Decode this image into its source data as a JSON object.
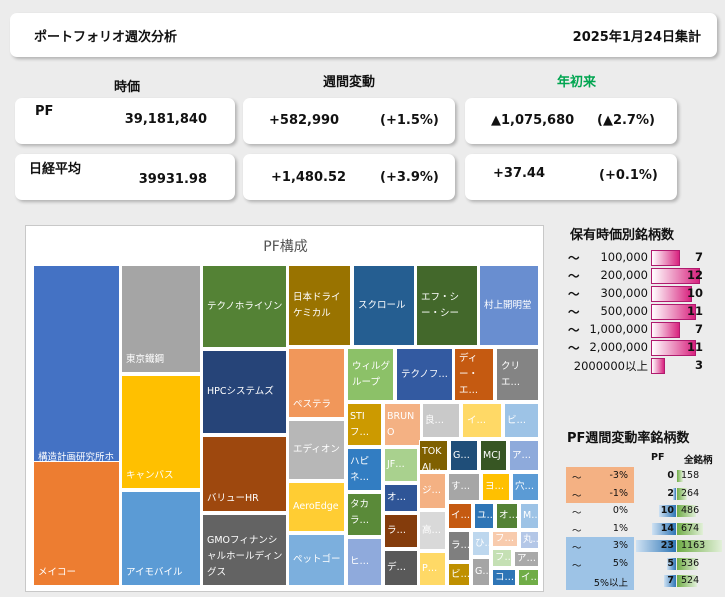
{
  "header": {
    "title": "ポートフォリオ週次分析",
    "date": "2025年1月24日集計"
  },
  "columns": {
    "price": "時価",
    "weekly": "週間変動",
    "ytd": "年初来"
  },
  "rows": [
    {
      "label": "PF",
      "price": "39,181,840",
      "weekly_val": "+582,990",
      "weekly_pct": "(+1.5%)",
      "ytd_val": "▲1,075,680",
      "ytd_pct": "(▲2.7%)"
    },
    {
      "label": "日経平均",
      "price": "39931.98",
      "weekly_val": "+1,480.52",
      "weekly_pct": "(+3.9%)",
      "ytd_val": "+37.44",
      "ytd_pct": "(+0.1%)"
    }
  ],
  "treemap": {
    "title": "PF構成",
    "cells": [
      {
        "label": "構造計画研究所ホールディングス",
        "color": "#4472c4"
      },
      {
        "label": "メイコー",
        "color": "#ed7d31"
      },
      {
        "label": "東京鐵鋼",
        "color": "#a5a5a5"
      },
      {
        "label": "キャンバス",
        "color": "#ffc000"
      },
      {
        "label": "アイモバイル",
        "color": "#5b9bd5"
      },
      {
        "label": "テクノホライゾン",
        "color": "#548235"
      },
      {
        "label": "HPCシステムズ",
        "color": "#264478"
      },
      {
        "label": "バリューHR",
        "color": "#9e480e"
      },
      {
        "label": "GMOフィナンシャルホールディングス",
        "color": "#636363"
      },
      {
        "label": "日本ドライケミカル",
        "color": "#997300"
      },
      {
        "label": "スクロール",
        "color": "#255e91"
      },
      {
        "label": "エフ・シー・シー",
        "color": "#43682b"
      },
      {
        "label": "村上開明堂",
        "color": "#698ed0"
      },
      {
        "label": "ペステラ",
        "color": "#f1975a"
      },
      {
        "label": "エディオン",
        "color": "#b7b7b7"
      },
      {
        "label": "AeroEdge",
        "color": "#ffcd33"
      },
      {
        "label": "ペットゴー",
        "color": "#7cafdd"
      },
      {
        "label": "ウィルグループ",
        "color": "#8cc168"
      },
      {
        "label": "テクノフ…",
        "color": "#335aa1"
      },
      {
        "label": "ディー・エ…",
        "color": "#c55a11"
      },
      {
        "label": "クリエ…",
        "color": "#848484"
      },
      {
        "label": "STIフ…",
        "color": "#cc9a00"
      },
      {
        "label": "ハピネ…",
        "color": "#327dc2"
      },
      {
        "label": "タカラ…",
        "color": "#5a8a39"
      },
      {
        "label": "ヒ…",
        "color": "#8faadc"
      },
      {
        "label": "BRUNO",
        "color": "#f4b183"
      },
      {
        "label": "JF…",
        "color": "#a9d18e"
      },
      {
        "label": "オ…",
        "color": "#2f5597"
      },
      {
        "label": "ラ…",
        "color": "#843c0c"
      },
      {
        "label": "デ…",
        "color": "#595959"
      },
      {
        "label": "良…",
        "color": "#c9c9c9"
      },
      {
        "label": "イ…",
        "color": "#ffd966"
      },
      {
        "label": "ビ…",
        "color": "#9dc3e6"
      },
      {
        "label": "TOKAI…",
        "color": "#7f6000"
      },
      {
        "label": "G…",
        "color": "#1f4e79"
      },
      {
        "label": "MCJ",
        "color": "#375623"
      },
      {
        "label": "ア…",
        "color": "#8eaadb"
      },
      {
        "label": "ジ…",
        "color": "#f4b183"
      },
      {
        "label": "す…",
        "color": "#a6a6a6"
      },
      {
        "label": "ヨ…",
        "color": "#ffc000"
      },
      {
        "label": "穴…",
        "color": "#5b9bd5"
      },
      {
        "label": "高…",
        "color": "#d9d9d9"
      },
      {
        "label": "イ…",
        "color": "#c55a11"
      },
      {
        "label": "ユ…",
        "color": "#2e75b6"
      },
      {
        "label": "オ…",
        "color": "#548235"
      },
      {
        "label": "M…",
        "color": "#9dc3e6"
      },
      {
        "label": "P…",
        "color": "#ffd966"
      },
      {
        "label": "ラ…",
        "color": "#7f7f7f"
      },
      {
        "label": "ひ…",
        "color": "#bdd7ee"
      },
      {
        "label": "フ…",
        "color": "#f8cbad"
      },
      {
        "label": "丸…",
        "color": "#b4c7e7"
      },
      {
        "label": "ビ…",
        "color": "#bf9000"
      },
      {
        "label": "G…",
        "color": "#a5a5a5"
      },
      {
        "label": "フ…",
        "color": "#c5e0b4"
      },
      {
        "label": "ア…",
        "color": "#a9a9a9"
      },
      {
        "label": "コ…",
        "color": "#2e75b6"
      },
      {
        "label": "イ…",
        "color": "#70ad47"
      }
    ]
  },
  "holdings_by_value": {
    "title": "保有時価別銘柄数",
    "rows": [
      {
        "prefix": "～",
        "range": "100,000",
        "count": 7,
        "count_text": "7"
      },
      {
        "prefix": "～",
        "range": "200,000",
        "count": 12,
        "count_text": "12"
      },
      {
        "prefix": "～",
        "range": "300,000",
        "count": 10,
        "count_text": "10"
      },
      {
        "prefix": "～",
        "range": "500,000",
        "count": 11,
        "count_text": "11"
      },
      {
        "prefix": "～",
        "range": "1,000,000",
        "count": 7,
        "count_text": "7"
      },
      {
        "prefix": "～",
        "range": "2,000,000",
        "count": 11,
        "count_text": "11"
      },
      {
        "prefix": "",
        "range": "2000000以上",
        "count": 3,
        "count_text": "3"
      }
    ]
  },
  "weekly_change": {
    "title": "PF週間変動率銘柄数",
    "col_pf": "PF",
    "col_all": "全銘柄",
    "rows": [
      {
        "prefix": "～",
        "range": "-3%",
        "pf": 0,
        "pf_text": "0",
        "all": 158,
        "all_text": "158"
      },
      {
        "prefix": "～",
        "range": "-1%",
        "pf": 2,
        "pf_text": "2",
        "all": 264,
        "all_text": "264"
      },
      {
        "prefix": "～",
        "range": "0%",
        "pf": 10,
        "pf_text": "10",
        "all": 486,
        "all_text": "486"
      },
      {
        "prefix": "～",
        "range": "1%",
        "pf": 14,
        "pf_text": "14",
        "all": 674,
        "all_text": "674"
      },
      {
        "prefix": "～",
        "range": "3%",
        "pf": 23,
        "pf_text": "23",
        "all": 1163,
        "all_text": "1163"
      },
      {
        "prefix": "～",
        "range": "5%",
        "pf": 5,
        "pf_text": "5",
        "all": 536,
        "all_text": "536"
      },
      {
        "prefix": "",
        "range": "5%以上",
        "pf": 7,
        "pf_text": "7",
        "all": 524,
        "all_text": "524"
      }
    ]
  },
  "colors": {
    "ytd_header": "#00a550",
    "bar_pink": "#d8237f",
    "neg_band": "#f4b183",
    "pos_band": "#9dc3e6",
    "pf_bar": "#2e75b6",
    "all_bar": "#70ad47"
  }
}
